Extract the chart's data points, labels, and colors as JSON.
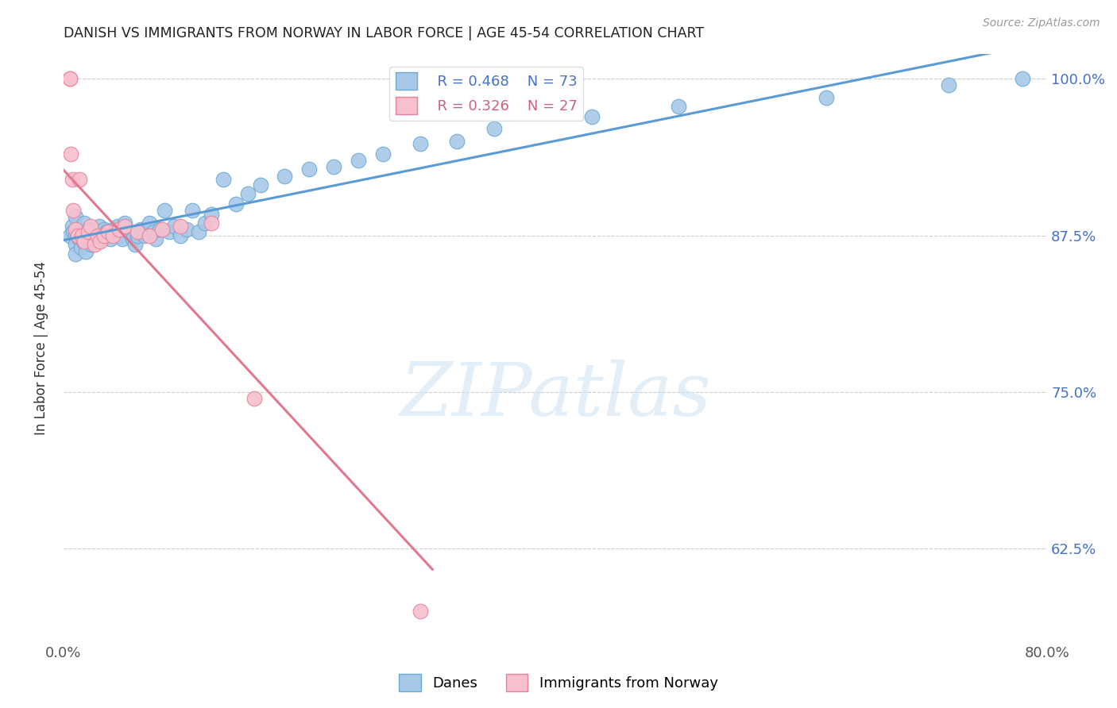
{
  "title": "DANISH VS IMMIGRANTS FROM NORWAY IN LABOR FORCE | AGE 45-54 CORRELATION CHART",
  "source_text": "Source: ZipAtlas.com",
  "ylabel": "In Labor Force | Age 45-54",
  "xlim": [
    0.0,
    0.8
  ],
  "ylim": [
    0.55,
    1.02
  ],
  "xtick_vals": [
    0.0,
    0.1,
    0.2,
    0.3,
    0.4,
    0.5,
    0.6,
    0.7,
    0.8
  ],
  "xticklabels": [
    "0.0%",
    "",
    "",
    "",
    "",
    "",
    "",
    "",
    "80.0%"
  ],
  "ytick_values": [
    0.625,
    0.75,
    0.875,
    1.0
  ],
  "ytick_labels": [
    "62.5%",
    "75.0%",
    "87.5%",
    "100.0%"
  ],
  "danes_color": "#a8c8e8",
  "danes_edge_color": "#6aaad4",
  "norway_color": "#f8c0ce",
  "norway_edge_color": "#e8809a",
  "danes_line_color": "#5b9bd5",
  "norway_line_color": "#e07890",
  "danes_R": 0.468,
  "danes_N": 73,
  "norway_R": 0.326,
  "norway_N": 27,
  "legend_label_danes": "Danes",
  "legend_label_norway": "Immigrants from Norway",
  "watermark_text": "ZIPatlas",
  "danes_x": [
    0.005,
    0.007,
    0.008,
    0.01,
    0.01,
    0.01,
    0.01,
    0.011,
    0.012,
    0.013,
    0.014,
    0.015,
    0.016,
    0.017,
    0.018,
    0.019,
    0.02,
    0.021,
    0.022,
    0.023,
    0.025,
    0.026,
    0.027,
    0.028,
    0.029,
    0.03,
    0.031,
    0.033,
    0.035,
    0.036,
    0.038,
    0.04,
    0.042,
    0.044,
    0.046,
    0.048,
    0.05,
    0.053,
    0.056,
    0.058,
    0.06,
    0.063,
    0.066,
    0.07,
    0.073,
    0.075,
    0.078,
    0.082,
    0.086,
    0.09,
    0.095,
    0.1,
    0.105,
    0.11,
    0.115,
    0.12,
    0.13,
    0.14,
    0.15,
    0.16,
    0.18,
    0.2,
    0.22,
    0.24,
    0.26,
    0.29,
    0.32,
    0.35,
    0.43,
    0.5,
    0.62,
    0.72,
    0.78
  ],
  "danes_y": [
    0.875,
    0.882,
    0.878,
    0.89,
    0.875,
    0.868,
    0.86,
    0.88,
    0.875,
    0.872,
    0.865,
    0.878,
    0.87,
    0.885,
    0.862,
    0.878,
    0.875,
    0.88,
    0.872,
    0.868,
    0.88,
    0.875,
    0.878,
    0.87,
    0.882,
    0.875,
    0.872,
    0.88,
    0.878,
    0.875,
    0.872,
    0.88,
    0.878,
    0.882,
    0.875,
    0.872,
    0.885,
    0.878,
    0.872,
    0.868,
    0.875,
    0.88,
    0.875,
    0.885,
    0.878,
    0.872,
    0.88,
    0.895,
    0.878,
    0.882,
    0.875,
    0.88,
    0.895,
    0.878,
    0.885,
    0.892,
    0.92,
    0.9,
    0.908,
    0.915,
    0.922,
    0.928,
    0.93,
    0.935,
    0.94,
    0.948,
    0.95,
    0.96,
    0.97,
    0.978,
    0.985,
    0.995,
    1.0
  ],
  "norway_x": [
    0.005,
    0.005,
    0.006,
    0.007,
    0.008,
    0.01,
    0.012,
    0.013,
    0.015,
    0.017,
    0.02,
    0.022,
    0.025,
    0.028,
    0.03,
    0.033,
    0.036,
    0.04,
    0.045,
    0.05,
    0.06,
    0.07,
    0.08,
    0.095,
    0.12,
    0.155,
    0.29
  ],
  "norway_y": [
    1.0,
    1.0,
    0.94,
    0.92,
    0.895,
    0.88,
    0.875,
    0.92,
    0.875,
    0.87,
    0.878,
    0.882,
    0.868,
    0.875,
    0.87,
    0.875,
    0.878,
    0.875,
    0.88,
    0.882,
    0.878,
    0.875,
    0.88,
    0.882,
    0.885,
    0.745,
    0.575
  ]
}
